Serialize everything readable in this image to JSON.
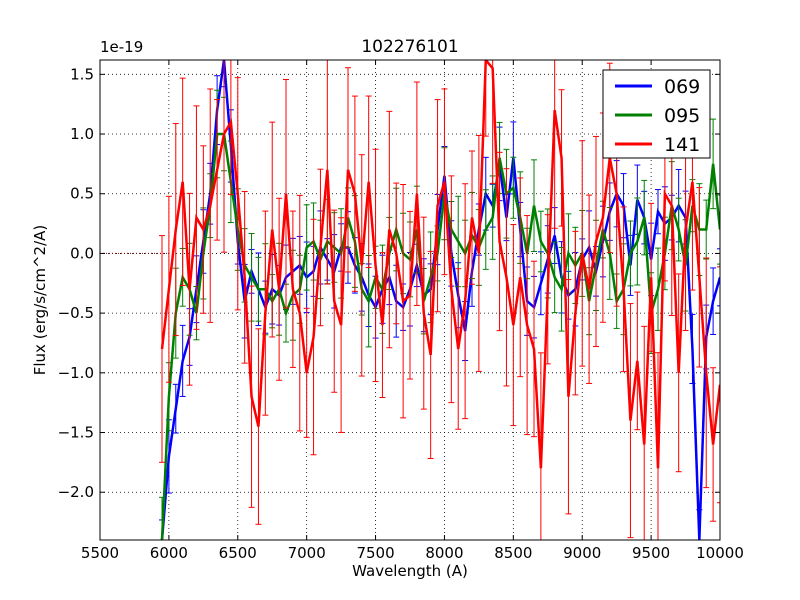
{
  "chart_data": {
    "type": "line",
    "title": "102276101",
    "xlabel": "Wavelength (A)",
    "ylabel": "Flux (erg/s/cm^2/A)",
    "offset_text": "1e-19",
    "xlim": [
      5500,
      10000
    ],
    "ylim": [
      -2.4,
      1.62
    ],
    "grid": true,
    "legend_position": "top-right",
    "x_ticks": [
      5500,
      6000,
      6500,
      7000,
      7500,
      8000,
      8500,
      9000,
      9500,
      10000
    ],
    "x_tick_labels": [
      "5500",
      "6000",
      "6500",
      "7000",
      "7500",
      "8000",
      "8500",
      "9000",
      "9500",
      "10000"
    ],
    "y_ticks": [
      -2.0,
      -1.5,
      -1.0,
      -0.5,
      0.0,
      0.5,
      1.0,
      1.5
    ],
    "y_tick_labels": [
      "−2.0",
      "−1.5",
      "−1.0",
      "−0.5",
      "0.0",
      "0.5",
      "1.0",
      "1.5"
    ],
    "series": [
      {
        "name": "069",
        "color": "#0000ff",
        "x": [
          5950,
          6000,
          6050,
          6100,
          6150,
          6200,
          6250,
          6300,
          6350,
          6400,
          6450,
          6500,
          6550,
          6600,
          6650,
          6700,
          6750,
          6800,
          6850,
          6900,
          6950,
          7000,
          7050,
          7100,
          7150,
          7200,
          7250,
          7300,
          7350,
          7400,
          7450,
          7500,
          7550,
          7600,
          7650,
          7700,
          7750,
          7800,
          7850,
          7900,
          7950,
          8000,
          8050,
          8100,
          8150,
          8200,
          8250,
          8300,
          8350,
          8400,
          8450,
          8500,
          8550,
          8600,
          8650,
          8700,
          8750,
          8800,
          8850,
          8900,
          8950,
          9000,
          9050,
          9100,
          9150,
          9200,
          9250,
          9300,
          9350,
          9400,
          9450,
          9500,
          9550,
          9600,
          9650,
          9700,
          9750,
          9800,
          9850,
          9900,
          9950,
          10000
        ],
        "y": [
          -2.4,
          -1.7,
          -1.3,
          -0.9,
          -0.7,
          -0.3,
          0.1,
          0.5,
          1.2,
          1.62,
          0.9,
          0.1,
          -0.4,
          -0.15,
          -0.3,
          -0.45,
          -0.3,
          -0.35,
          -0.2,
          -0.15,
          -0.1,
          -0.2,
          -0.15,
          0.05,
          -0.05,
          -0.15,
          0.05,
          0.05,
          -0.1,
          -0.2,
          -0.35,
          -0.45,
          -0.3,
          -0.2,
          -0.4,
          -0.45,
          -0.3,
          -0.1,
          -0.35,
          -0.3,
          0.2,
          0.65,
          0.0,
          -0.35,
          -0.65,
          -0.15,
          0.2,
          0.5,
          0.4,
          0.75,
          0.3,
          0.8,
          0.2,
          -0.4,
          -0.45,
          -0.25,
          -0.05,
          0.15,
          -0.2,
          -0.35,
          -0.3,
          -0.05,
          0.05,
          -0.15,
          0.1,
          0.35,
          0.5,
          0.4,
          -0.1,
          0.45,
          0.3,
          -0.05,
          0.35,
          0.25,
          0.3,
          0.4,
          0.3,
          -0.8,
          -2.4,
          -0.7,
          -0.4,
          -0.2
        ]
      },
      {
        "name": "095",
        "color": "#008000",
        "x": [
          5950,
          6000,
          6050,
          6100,
          6150,
          6200,
          6250,
          6300,
          6350,
          6400,
          6450,
          6500,
          6550,
          6600,
          6650,
          6700,
          6750,
          6800,
          6850,
          6900,
          6950,
          7000,
          7050,
          7100,
          7150,
          7200,
          7250,
          7300,
          7350,
          7400,
          7450,
          7500,
          7550,
          7600,
          7650,
          7700,
          7750,
          7800,
          7850,
          7900,
          7950,
          8000,
          8050,
          8100,
          8150,
          8200,
          8250,
          8300,
          8350,
          8400,
          8450,
          8500,
          8550,
          8600,
          8650,
          8700,
          8750,
          8800,
          8850,
          8900,
          8950,
          9000,
          9050,
          9100,
          9150,
          9200,
          9250,
          9300,
          9350,
          9400,
          9450,
          9500,
          9550,
          9600,
          9650,
          9700,
          9750,
          9800,
          9850,
          9900,
          9950,
          10000
        ],
        "y": [
          -2.4,
          -1.2,
          -0.5,
          -0.2,
          -0.3,
          -0.5,
          0.0,
          0.4,
          1.0,
          1.0,
          0.6,
          0.2,
          -0.1,
          -0.2,
          -0.3,
          -0.3,
          -0.4,
          -0.3,
          -0.5,
          -0.35,
          -0.3,
          0.05,
          0.1,
          -0.05,
          0.1,
          0.05,
          0.0,
          0.3,
          0.1,
          -0.3,
          -0.4,
          -0.2,
          -0.3,
          0.0,
          0.2,
          0.0,
          -0.05,
          0.2,
          -0.4,
          -0.2,
          0.0,
          0.5,
          0.2,
          0.1,
          0.0,
          0.15,
          0.05,
          0.2,
          0.3,
          0.8,
          0.5,
          0.55,
          0.3,
          0.0,
          0.4,
          0.1,
          0.0,
          -0.2,
          -0.3,
          0.0,
          -0.1,
          0.0,
          -0.4,
          -0.1,
          0.2,
          0.0,
          -0.4,
          -0.3,
          0.0,
          0.1,
          0.3,
          -0.5,
          -0.3,
          0.0,
          0.4,
          0.2,
          -0.1,
          0.4,
          0.2,
          0.2,
          0.75,
          0.2
        ]
      },
      {
        "name": "141",
        "color": "#ff0000",
        "x": [
          5950,
          6000,
          6050,
          6100,
          6150,
          6200,
          6250,
          6300,
          6350,
          6400,
          6450,
          6500,
          6550,
          6600,
          6650,
          6700,
          6750,
          6800,
          6850,
          6900,
          6950,
          7000,
          7050,
          7100,
          7150,
          7200,
          7250,
          7300,
          7350,
          7400,
          7450,
          7500,
          7550,
          7600,
          7650,
          7700,
          7750,
          7800,
          7850,
          7900,
          7950,
          8000,
          8050,
          8100,
          8150,
          8200,
          8250,
          8300,
          8350,
          8400,
          8450,
          8500,
          8550,
          8600,
          8650,
          8700,
          8750,
          8800,
          8850,
          8900,
          8950,
          9000,
          9050,
          9100,
          9150,
          9200,
          9250,
          9300,
          9350,
          9400,
          9450,
          9500,
          9550,
          9600,
          9650,
          9700,
          9750,
          9800,
          9850,
          9900,
          9950,
          10000
        ],
        "y": [
          -0.8,
          -0.3,
          0.2,
          0.6,
          -0.3,
          0.3,
          0.2,
          0.4,
          0.7,
          1.0,
          1.1,
          0.5,
          -0.2,
          -1.2,
          -1.45,
          -0.5,
          0.2,
          -0.3,
          0.5,
          -0.3,
          -0.5,
          -1.0,
          -0.7,
          0.05,
          0.7,
          -0.4,
          -0.6,
          0.7,
          0.5,
          -0.1,
          0.6,
          -0.1,
          -0.6,
          0.2,
          0.0,
          -0.4,
          -0.35,
          0.5,
          -0.5,
          -0.85,
          0.4,
          0.6,
          -0.3,
          -0.8,
          -0.4,
          0.3,
          0.0,
          1.62,
          1.55,
          0.1,
          -0.2,
          -0.6,
          -0.2,
          -0.6,
          -0.8,
          -1.8,
          -0.3,
          1.2,
          0.8,
          -1.2,
          -0.5,
          0.0,
          -0.3,
          0.1,
          0.3,
          0.8,
          0.5,
          -0.3,
          -1.4,
          -0.9,
          -1.6,
          -0.2,
          -1.8,
          0.5,
          0.4,
          -1.0,
          0.2,
          0.6,
          -0.2,
          -1.0,
          -1.6,
          -1.1
        ]
      }
    ],
    "legend": [
      {
        "label": "069",
        "color": "#0000ff"
      },
      {
        "label": "095",
        "color": "#008000"
      },
      {
        "label": "141",
        "color": "#ff0000"
      }
    ]
  }
}
